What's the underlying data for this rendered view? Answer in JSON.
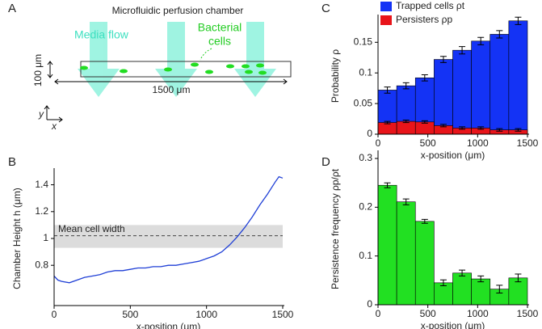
{
  "diagram": {
    "panel": "A",
    "title": "Microfluidic perfusion chamber",
    "flow_label": "Media flow",
    "cells_label": [
      "Bacterial",
      "cells"
    ],
    "height_label": "100 μm",
    "length_label": "1500 μm",
    "y_axis": "y",
    "x_axis": "x"
  },
  "chart_data": [
    {
      "type": "line",
      "panel": "B",
      "ylabel": "Chamber Height  h (μm)",
      "xlabel": "x-position (μm)",
      "color": "#1f3fd6",
      "x": [
        0,
        25,
        50,
        100,
        150,
        200,
        250,
        300,
        350,
        400,
        450,
        500,
        550,
        600,
        650,
        700,
        750,
        800,
        850,
        900,
        950,
        1000,
        1050,
        1100,
        1150,
        1200,
        1250,
        1300,
        1350,
        1400,
        1450,
        1475,
        1500
      ],
      "y": [
        0.72,
        0.69,
        0.68,
        0.67,
        0.69,
        0.71,
        0.72,
        0.73,
        0.75,
        0.76,
        0.76,
        0.77,
        0.78,
        0.78,
        0.79,
        0.79,
        0.8,
        0.8,
        0.81,
        0.82,
        0.83,
        0.85,
        0.87,
        0.9,
        0.95,
        1.01,
        1.08,
        1.16,
        1.25,
        1.33,
        1.42,
        1.46,
        1.45
      ],
      "xlim": [
        0,
        1500
      ],
      "xticks": [
        0,
        500,
        1000,
        1500
      ],
      "ylim": [
        0.5,
        1.5
      ],
      "yticks": [
        0.8,
        1,
        1.2,
        1.4
      ],
      "band": [
        0.93,
        1.1
      ],
      "reference_line": 1.02,
      "annotation": "Mean cell width"
    },
    {
      "type": "histogram",
      "panel": "C",
      "ylabel": "Probability  ρ",
      "xlabel": "x-position (μm)",
      "bins": [
        0,
        187.5,
        375,
        562.5,
        750,
        937.5,
        1125,
        1312.5,
        1500
      ],
      "series": [
        {
          "name": "Trapped cells  ρt",
          "color": "#1433f5",
          "values": [
            0.072,
            0.079,
            0.092,
            0.122,
            0.137,
            0.152,
            0.163,
            0.185
          ],
          "errors": [
            0.005,
            0.005,
            0.005,
            0.005,
            0.006,
            0.006,
            0.006,
            0.006
          ]
        },
        {
          "name": "Persisters  ρp",
          "color": "#e8141a",
          "values": [
            0.019,
            0.021,
            0.02,
            0.014,
            0.01,
            0.01,
            0.007,
            0.007
          ],
          "errors": [
            0.002,
            0.002,
            0.002,
            0.002,
            0.002,
            0.002,
            0.002,
            0.002
          ]
        }
      ],
      "xlim": [
        0,
        1500
      ],
      "xticks": [
        0,
        500,
        1000,
        1500
      ],
      "ylim": [
        0,
        0.19
      ],
      "yticks": [
        0,
        0.05,
        0.1,
        0.15
      ]
    },
    {
      "type": "histogram",
      "panel": "D",
      "ylabel": "Persistence frequency  ρp/ρt",
      "xlabel": "x-position (μm)",
      "bins": [
        0,
        187.5,
        375,
        562.5,
        750,
        937.5,
        1125,
        1312.5,
        1500
      ],
      "series": [
        {
          "color": "#22e022",
          "values": [
            0.245,
            0.211,
            0.171,
            0.045,
            0.065,
            0.053,
            0.032,
            0.055
          ],
          "errors": [
            0.005,
            0.006,
            0.004,
            0.006,
            0.006,
            0.006,
            0.008,
            0.008
          ]
        }
      ],
      "xlim": [
        0,
        1500
      ],
      "xticks": [
        0,
        500,
        1000,
        1500
      ],
      "ylim": [
        0,
        0.31
      ],
      "yticks": [
        0,
        0.1,
        0.2,
        0.3
      ]
    }
  ]
}
